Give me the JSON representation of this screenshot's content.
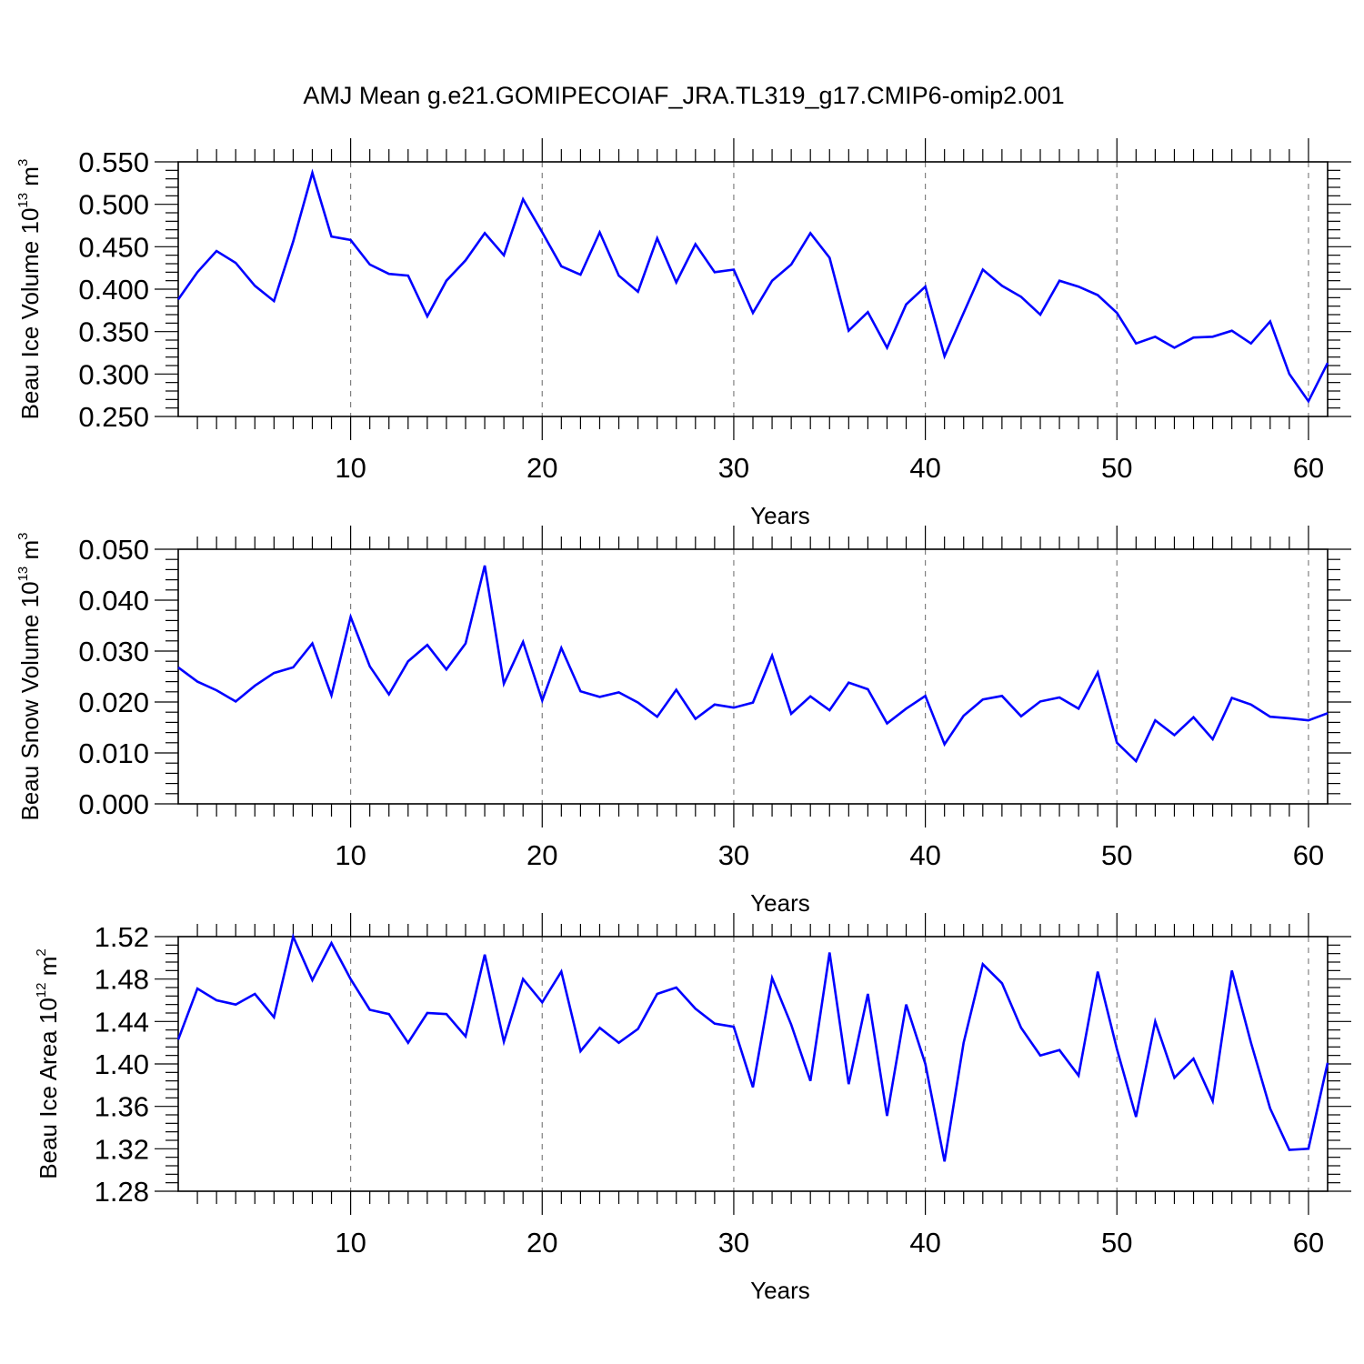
{
  "title": "AMJ Mean g.e21.GOMIPECOIAF_JRA.TL319_g17.CMIP6-omip2.001",
  "colors": {
    "line": "#0000ff",
    "axis": "#000000",
    "grid": "#808080"
  },
  "chart_data": [
    {
      "type": "line",
      "xlabel": "Years",
      "ylabel": {
        "main": "Beau Ice Volume 10",
        "exp": "13",
        "unit": " m",
        "unit_exp": "3"
      },
      "xlim": [
        1,
        61
      ],
      "ylim": [
        0.25,
        0.55
      ],
      "xticks": [
        10,
        20,
        30,
        40,
        50,
        60
      ],
      "xtick_labels": [
        "10",
        "20",
        "30",
        "40",
        "50",
        "60"
      ],
      "yticks": [
        0.25,
        0.3,
        0.35,
        0.4,
        0.45,
        0.5,
        0.55
      ],
      "ytick_labels": [
        "0.250",
        "0.300",
        "0.350",
        "0.400",
        "0.450",
        "0.500",
        "0.550"
      ],
      "grid": "vertical dashed at major x ticks",
      "series": [
        {
          "name": "Beau Ice Volume",
          "x_start": 1,
          "values": [
            0.388,
            0.42,
            0.445,
            0.431,
            0.404,
            0.386,
            0.456,
            0.537,
            0.462,
            0.458,
            0.429,
            0.418,
            0.416,
            0.368,
            0.41,
            0.434,
            0.466,
            0.44,
            0.506,
            0.467,
            0.427,
            0.417,
            0.467,
            0.416,
            0.397,
            0.46,
            0.408,
            0.453,
            0.42,
            0.423,
            0.372,
            0.41,
            0.429,
            0.466,
            0.437,
            0.351,
            0.373,
            0.331,
            0.382,
            0.403,
            0.321,
            0.372,
            0.423,
            0.404,
            0.391,
            0.37,
            0.41,
            0.403,
            0.393,
            0.372,
            0.336,
            0.344,
            0.331,
            0.343,
            0.344,
            0.351,
            0.336,
            0.362,
            0.3,
            0.268,
            0.313
          ]
        }
      ]
    },
    {
      "type": "line",
      "xlabel": "Years",
      "ylabel": {
        "main": "Beau Snow Volume 10",
        "exp": "13",
        "unit": " m",
        "unit_exp": "3"
      },
      "xlim": [
        1,
        61
      ],
      "ylim": [
        0.0,
        0.05
      ],
      "xticks": [
        10,
        20,
        30,
        40,
        50,
        60
      ],
      "xtick_labels": [
        "10",
        "20",
        "30",
        "40",
        "50",
        "60"
      ],
      "yticks": [
        0.0,
        0.01,
        0.02,
        0.03,
        0.04,
        0.05
      ],
      "ytick_labels": [
        "0.000",
        "0.010",
        "0.020",
        "0.030",
        "0.040",
        "0.050"
      ],
      "grid": "vertical dashed at major x ticks",
      "series": [
        {
          "name": "Beau Snow Volume",
          "x_start": 1,
          "values": [
            0.0268,
            0.024,
            0.0223,
            0.0201,
            0.0232,
            0.0257,
            0.0268,
            0.0315,
            0.0213,
            0.0367,
            0.027,
            0.0215,
            0.028,
            0.0312,
            0.0264,
            0.0315,
            0.0468,
            0.0236,
            0.0318,
            0.0203,
            0.0306,
            0.0221,
            0.021,
            0.0219,
            0.0199,
            0.0171,
            0.0224,
            0.0167,
            0.0195,
            0.0189,
            0.0199,
            0.0291,
            0.0177,
            0.0211,
            0.0184,
            0.0238,
            0.0225,
            0.0158,
            0.0187,
            0.0212,
            0.0117,
            0.0173,
            0.0205,
            0.0212,
            0.0172,
            0.0201,
            0.0209,
            0.0187,
            0.0258,
            0.012,
            0.0084,
            0.0164,
            0.0135,
            0.017,
            0.0127,
            0.0208,
            0.0195,
            0.0171,
            0.0168,
            0.0164,
            0.0178
          ]
        }
      ]
    },
    {
      "type": "line",
      "xlabel": "Years",
      "ylabel": {
        "main": "Beau Ice Area 10",
        "exp": "12",
        "unit": " m",
        "unit_exp": "2"
      },
      "xlim": [
        1,
        61
      ],
      "ylim": [
        1.28,
        1.52
      ],
      "xticks": [
        10,
        20,
        30,
        40,
        50,
        60
      ],
      "xtick_labels": [
        "10",
        "20",
        "30",
        "40",
        "50",
        "60"
      ],
      "yticks": [
        1.28,
        1.32,
        1.36,
        1.4,
        1.44,
        1.48,
        1.52
      ],
      "ytick_labels": [
        "1.28",
        "1.32",
        "1.36",
        "1.40",
        "1.44",
        "1.48",
        "1.52"
      ],
      "grid": "vertical dashed at major x ticks",
      "series": [
        {
          "name": "Beau Ice Area",
          "x_start": 1,
          "values": [
            1.423,
            1.471,
            1.46,
            1.456,
            1.466,
            1.444,
            1.52,
            1.479,
            1.514,
            1.48,
            1.451,
            1.447,
            1.42,
            1.448,
            1.447,
            1.426,
            1.503,
            1.421,
            1.48,
            1.458,
            1.487,
            1.412,
            1.434,
            1.42,
            1.433,
            1.466,
            1.472,
            1.452,
            1.438,
            1.435,
            1.378,
            1.481,
            1.437,
            1.384,
            1.505,
            1.381,
            1.466,
            1.351,
            1.456,
            1.4,
            1.308,
            1.42,
            1.494,
            1.476,
            1.434,
            1.408,
            1.413,
            1.389,
            1.487,
            1.414,
            1.35,
            1.44,
            1.387,
            1.405,
            1.365,
            1.488,
            1.42,
            1.358,
            1.319,
            1.32,
            1.401
          ]
        }
      ]
    }
  ]
}
